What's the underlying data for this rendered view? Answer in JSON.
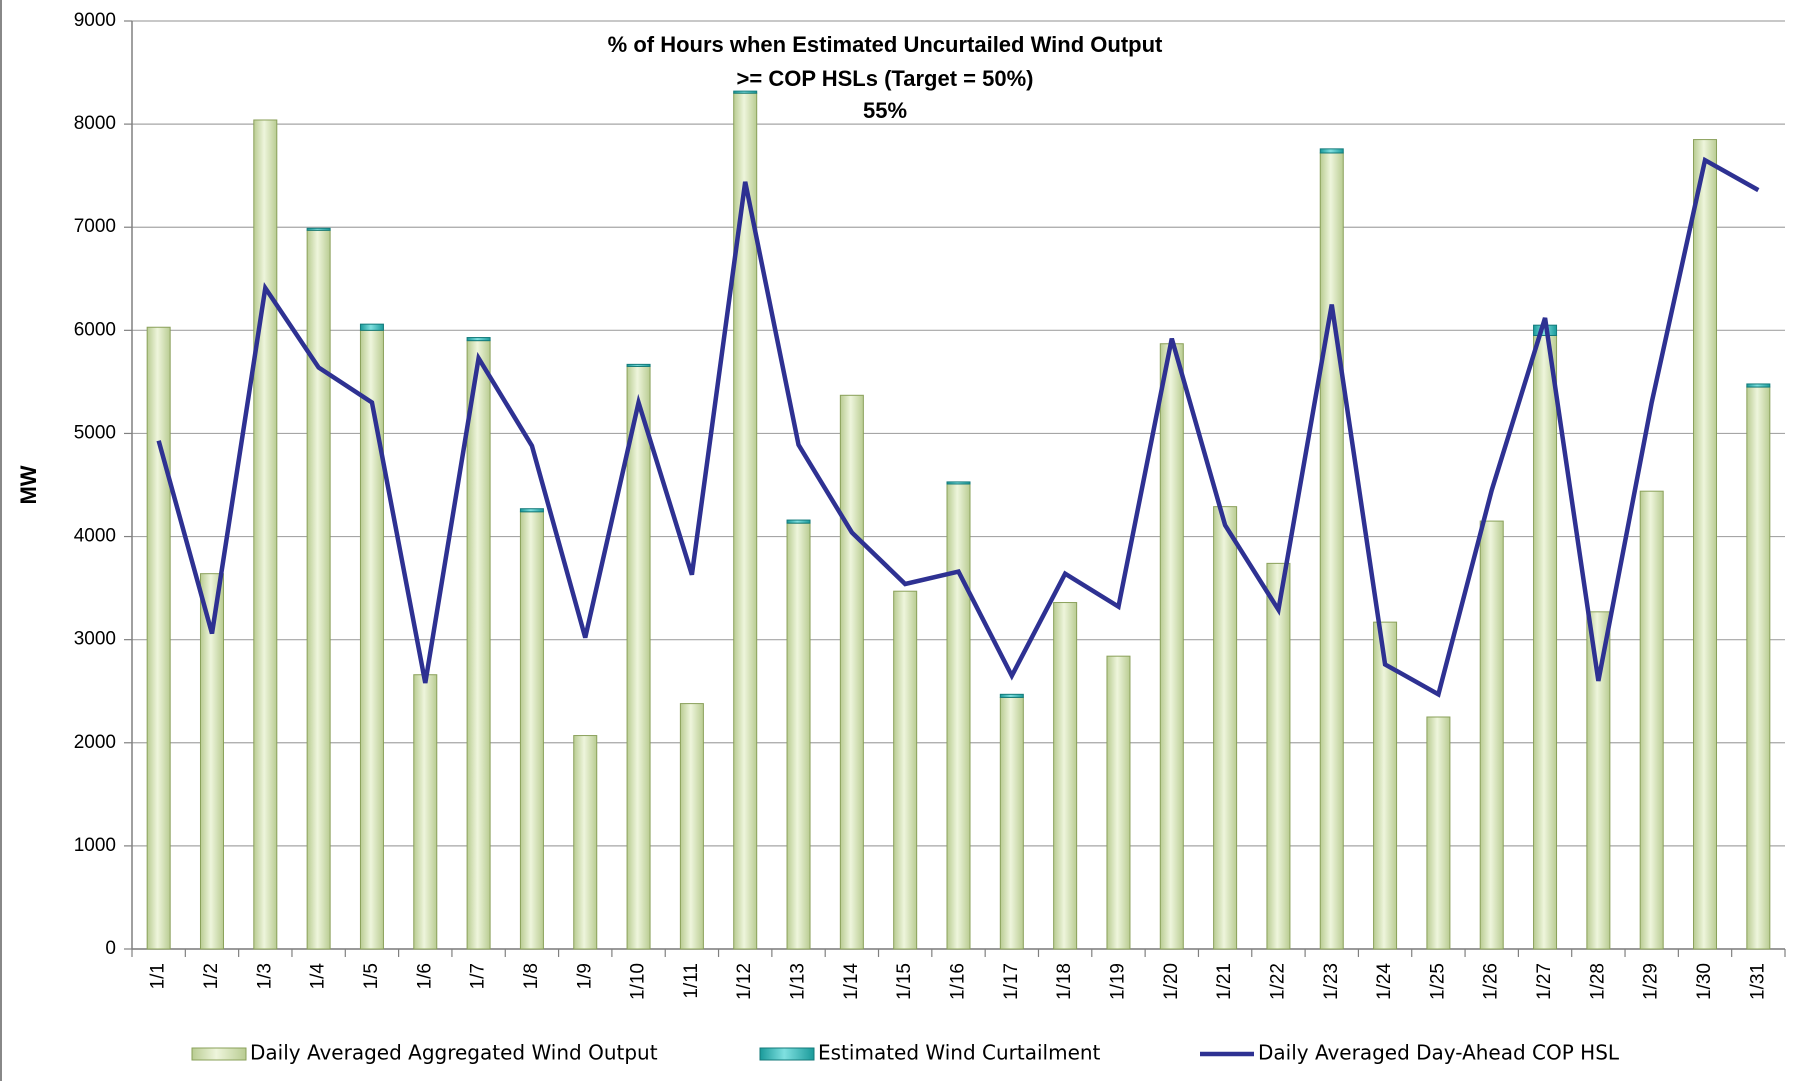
{
  "chart_data": {
    "type": "bar",
    "title": [
      "% of Hours when Estimated Uncurtailed Wind Output",
      ">= COP HSLs (Target = 50%)"
    ],
    "annotation": "55%",
    "y_label": "MW",
    "categories": [
      "1/1",
      "1/2",
      "1/3",
      "1/4",
      "1/5",
      "1/6",
      "1/7",
      "1/8",
      "1/9",
      "1/10",
      "1/11",
      "1/12",
      "1/13",
      "1/14",
      "1/15",
      "1/16",
      "1/17",
      "1/18",
      "1/19",
      "1/20",
      "1/21",
      "1/22",
      "1/23",
      "1/24",
      "1/25",
      "1/26",
      "1/27",
      "1/28",
      "1/29",
      "1/30",
      "1/31"
    ],
    "series": [
      {
        "name": "Daily Averaged Aggregated Wind Output",
        "type": "bar",
        "color": "#d8e6bd",
        "edge": "#8aa05a",
        "values": [
          6030,
          3640,
          8040,
          6970,
          6000,
          2660,
          5900,
          4240,
          2070,
          5650,
          2380,
          8300,
          4130,
          5370,
          3470,
          4510,
          2440,
          3360,
          2840,
          5870,
          4290,
          3740,
          7720,
          3170,
          2250,
          4150,
          5950,
          3270,
          4440,
          7850,
          5450
        ]
      },
      {
        "name": "Estimated Wind Curtailment",
        "type": "bar",
        "color": "#2fb8b8",
        "edge": "#137a7a",
        "values": [
          0,
          0,
          0,
          20,
          60,
          0,
          30,
          30,
          0,
          20,
          0,
          20,
          30,
          0,
          0,
          20,
          30,
          0,
          0,
          0,
          0,
          0,
          40,
          0,
          0,
          0,
          100,
          0,
          0,
          0,
          30
        ]
      },
      {
        "name": "Daily Averaged Day-Ahead COP HSL",
        "type": "line",
        "color": "#2e3192",
        "values": [
          4930,
          3060,
          6410,
          5640,
          5300,
          2580,
          5730,
          4880,
          3020,
          5300,
          3630,
          7440,
          4890,
          4040,
          3540,
          3660,
          2650,
          3640,
          3320,
          5920,
          4110,
          3290,
          6250,
          2760,
          2470,
          4450,
          6120,
          2600,
          5300,
          7650,
          7360
        ]
      }
    ],
    "ylim": [
      0,
      9000
    ],
    "yticks": [
      0,
      1000,
      2000,
      3000,
      4000,
      5000,
      6000,
      7000,
      8000,
      9000
    ],
    "grid": true,
    "legend": "bottom"
  }
}
